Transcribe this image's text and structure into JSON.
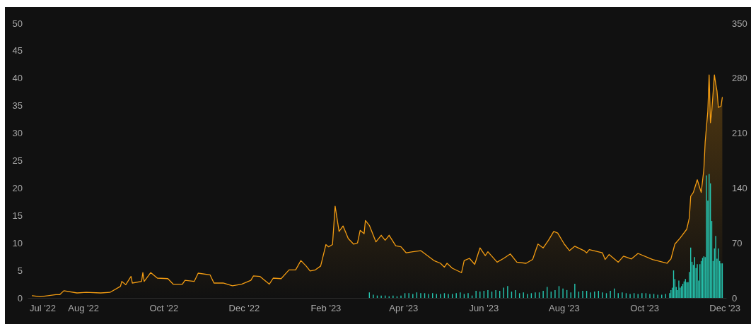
{
  "chart_data": {
    "type": "area",
    "xlim": [
      "2022-06-20",
      "2023-12-02"
    ],
    "xticks": [
      {
        "value": "2022-07-01",
        "label": "Jul '22"
      },
      {
        "value": "2022-08-01",
        "label": "Aug '22"
      },
      {
        "value": "2022-10-01",
        "label": "Oct '22"
      },
      {
        "value": "2022-12-01",
        "label": "Dec '22"
      },
      {
        "value": "2023-02-01",
        "label": "Feb '23"
      },
      {
        "value": "2023-04-01",
        "label": "Apr '23"
      },
      {
        "value": "2023-06-01",
        "label": "Jun '23"
      },
      {
        "value": "2023-08-01",
        "label": "Aug '23"
      },
      {
        "value": "2023-10-01",
        "label": "Oct '23"
      },
      {
        "value": "2023-12-01",
        "label": "Dec '23"
      }
    ],
    "ylim": [
      0,
      50
    ],
    "yticks": [
      0,
      5,
      10,
      15,
      20,
      25,
      30,
      35,
      40,
      45,
      50
    ],
    "y2lim": [
      0,
      350
    ],
    "y2ticks": [
      0,
      70,
      140,
      210,
      280,
      350
    ],
    "grid": false,
    "marker": "none",
    "line_style": "solid",
    "series": [
      {
        "color": "#f39c12",
        "x": [
          "2022-06-23",
          "2022-06-29",
          "2022-07-11",
          "2022-07-14",
          "2022-07-17",
          "2022-07-27",
          "2022-08-03",
          "2022-08-14",
          "2022-08-21",
          "2022-08-29",
          "2022-08-30",
          "2022-09-02",
          "2022-09-06",
          "2022-09-07",
          "2022-09-14",
          "2022-09-15",
          "2022-09-16",
          "2022-09-21",
          "2022-09-26",
          "2022-10-04",
          "2022-10-08",
          "2022-10-15",
          "2022-10-17",
          "2022-10-24",
          "2022-10-27",
          "2022-11-05",
          "2022-11-08",
          "2022-11-15",
          "2022-11-22",
          "2022-11-29",
          "2022-12-06",
          "2022-12-08",
          "2022-12-13",
          "2022-12-20",
          "2022-12-23",
          "2022-12-29",
          "2023-01-04",
          "2023-01-09",
          "2023-01-13",
          "2023-01-17",
          "2023-01-20",
          "2023-01-24",
          "2023-01-28",
          "2023-02-01",
          "2023-02-03",
          "2023-02-06",
          "2023-02-08",
          "2023-02-11",
          "2023-02-14",
          "2023-02-18",
          "2023-02-22",
          "2023-02-25",
          "2023-02-27",
          "2023-03-02",
          "2023-03-03",
          "2023-03-06",
          "2023-03-11",
          "2023-03-15",
          "2023-03-18",
          "2023-03-21",
          "2023-03-26",
          "2023-03-30",
          "2023-04-03",
          "2023-04-08",
          "2023-04-14",
          "2023-04-24",
          "2023-04-29",
          "2023-05-02",
          "2023-05-04",
          "2023-05-08",
          "2023-05-15",
          "2023-05-17",
          "2023-05-21",
          "2023-05-25",
          "2023-05-29",
          "2023-06-02",
          "2023-06-04",
          "2023-06-11",
          "2023-06-16",
          "2023-06-21",
          "2023-06-26",
          "2023-07-03",
          "2023-07-08",
          "2023-07-12",
          "2023-07-16",
          "2023-07-20",
          "2023-07-24",
          "2023-07-27",
          "2023-08-01",
          "2023-08-05",
          "2023-08-09",
          "2023-08-16",
          "2023-08-18",
          "2023-08-20",
          "2023-08-30",
          "2023-09-01",
          "2023-09-04",
          "2023-09-11",
          "2023-09-15",
          "2023-09-21",
          "2023-09-26",
          "2023-10-07",
          "2023-10-18",
          "2023-10-21",
          "2023-10-24",
          "2023-10-28",
          "2023-11-02",
          "2023-11-04",
          "2023-11-05",
          "2023-11-07",
          "2023-11-10",
          "2023-11-13",
          "2023-11-15",
          "2023-11-16",
          "2023-11-18",
          "2023-11-19",
          "2023-11-20",
          "2023-11-21",
          "2023-11-23",
          "2023-11-24",
          "2023-11-25",
          "2023-11-26",
          "2023-11-28",
          "2023-11-29"
        ],
        "values": [
          0.4,
          0.2,
          0.6,
          0.6,
          1.3,
          0.9,
          1.0,
          0.9,
          1.0,
          2.1,
          3.0,
          2.4,
          3.9,
          2.7,
          3.0,
          4.6,
          3.0,
          4.6,
          3.6,
          3.5,
          2.5,
          2.5,
          3.2,
          3.0,
          4.5,
          4.2,
          2.7,
          2.7,
          2.2,
          2.5,
          3.2,
          4.0,
          3.9,
          2.5,
          3.6,
          3.5,
          5.1,
          5.1,
          6.8,
          5.8,
          4.9,
          5.1,
          5.8,
          9.7,
          9.3,
          9.7,
          16.7,
          12.1,
          13.1,
          10.8,
          9.8,
          10.0,
          12.3,
          11.7,
          14.1,
          13.2,
          10.2,
          11.4,
          10.5,
          11.4,
          9.5,
          9.3,
          8.2,
          8.4,
          8.6,
          6.8,
          6.3,
          5.6,
          6.3,
          5.4,
          4.6,
          6.8,
          7.2,
          6.1,
          9.1,
          7.7,
          8.4,
          6.5,
          7.2,
          8.0,
          6.5,
          6.3,
          7.0,
          9.8,
          9.1,
          10.5,
          12.1,
          11.8,
          9.8,
          8.6,
          9.4,
          8.6,
          8.2,
          8.8,
          8.2,
          7.0,
          7.9,
          6.5,
          7.6,
          7.1,
          8.1,
          7.0,
          6.3,
          7.1,
          9.8,
          10.9,
          12.5,
          14.6,
          18.5,
          19.2,
          21.5,
          19.2,
          23.4,
          28.4,
          34.0,
          40.6,
          31.9,
          34.0,
          40.6,
          39.0,
          37.6,
          34.7,
          34.9,
          36.5
        ]
      },
      {
        "type": "bar",
        "axis": "y2",
        "color": "#26c6b0",
        "x": [
          "2023-03-06",
          "2023-03-09",
          "2023-03-12",
          "2023-03-15",
          "2023-03-18",
          "2023-03-21",
          "2023-03-24",
          "2023-03-27",
          "2023-03-30",
          "2023-04-02",
          "2023-04-05",
          "2023-04-08",
          "2023-04-11",
          "2023-04-14",
          "2023-04-17",
          "2023-04-20",
          "2023-04-23",
          "2023-04-26",
          "2023-04-29",
          "2023-05-02",
          "2023-05-05",
          "2023-05-08",
          "2023-05-11",
          "2023-05-14",
          "2023-05-17",
          "2023-05-20",
          "2023-05-23",
          "2023-05-26",
          "2023-05-29",
          "2023-06-01",
          "2023-06-04",
          "2023-06-07",
          "2023-06-10",
          "2023-06-13",
          "2023-06-16",
          "2023-06-19",
          "2023-06-22",
          "2023-06-25",
          "2023-06-28",
          "2023-07-01",
          "2023-07-04",
          "2023-07-07",
          "2023-07-10",
          "2023-07-13",
          "2023-07-16",
          "2023-07-19",
          "2023-07-22",
          "2023-07-25",
          "2023-07-28",
          "2023-07-31",
          "2023-08-03",
          "2023-08-06",
          "2023-08-09",
          "2023-08-12",
          "2023-08-15",
          "2023-08-18",
          "2023-08-21",
          "2023-08-24",
          "2023-08-27",
          "2023-08-30",
          "2023-09-02",
          "2023-09-05",
          "2023-09-08",
          "2023-09-11",
          "2023-09-14",
          "2023-09-17",
          "2023-09-20",
          "2023-09-23",
          "2023-09-26",
          "2023-09-29",
          "2023-10-02",
          "2023-10-05",
          "2023-10-08",
          "2023-10-11",
          "2023-10-14",
          "2023-10-17",
          "2023-10-20",
          "2023-10-21",
          "2023-10-22",
          "2023-10-23",
          "2023-10-24",
          "2023-10-25",
          "2023-10-26",
          "2023-10-27",
          "2023-10-28",
          "2023-10-29",
          "2023-10-30",
          "2023-10-31",
          "2023-11-01",
          "2023-11-02",
          "2023-11-03",
          "2023-11-04",
          "2023-11-05",
          "2023-11-06",
          "2023-11-07",
          "2023-11-08",
          "2023-11-09",
          "2023-11-10",
          "2023-11-11",
          "2023-11-12",
          "2023-11-13",
          "2023-11-14",
          "2023-11-15",
          "2023-11-16",
          "2023-11-17",
          "2023-11-18",
          "2023-11-19",
          "2023-11-20",
          "2023-11-21",
          "2023-11-22",
          "2023-11-23",
          "2023-11-24",
          "2023-11-25",
          "2023-11-26",
          "2023-11-27",
          "2023-11-28",
          "2023-11-29"
        ],
        "values": [
          7,
          4,
          3,
          3,
          3,
          2,
          3,
          2,
          3,
          6,
          6,
          5,
          7,
          6,
          6,
          5,
          6,
          5,
          5,
          6,
          5,
          5,
          6,
          7,
          5,
          6,
          3,
          9,
          8,
          9,
          10,
          8,
          10,
          9,
          13,
          15,
          8,
          10,
          6,
          7,
          5,
          6,
          7,
          7,
          9,
          14,
          8,
          10,
          15,
          12,
          10,
          7,
          18,
          8,
          9,
          9,
          7,
          8,
          9,
          7,
          6,
          9,
          12,
          6,
          7,
          6,
          5,
          6,
          5,
          6,
          6,
          5,
          5,
          4,
          4,
          5,
          6,
          10,
          13,
          35,
          24,
          14,
          10,
          22,
          13,
          15,
          18,
          21,
          24,
          20,
          20,
          33,
          64,
          46,
          42,
          52,
          38,
          43,
          22,
          43,
          47,
          51,
          53,
          52,
          156,
          124,
          158,
          146,
          98,
          47,
          63,
          79,
          50,
          63,
          47,
          44,
          44
        ]
      }
    ]
  }
}
